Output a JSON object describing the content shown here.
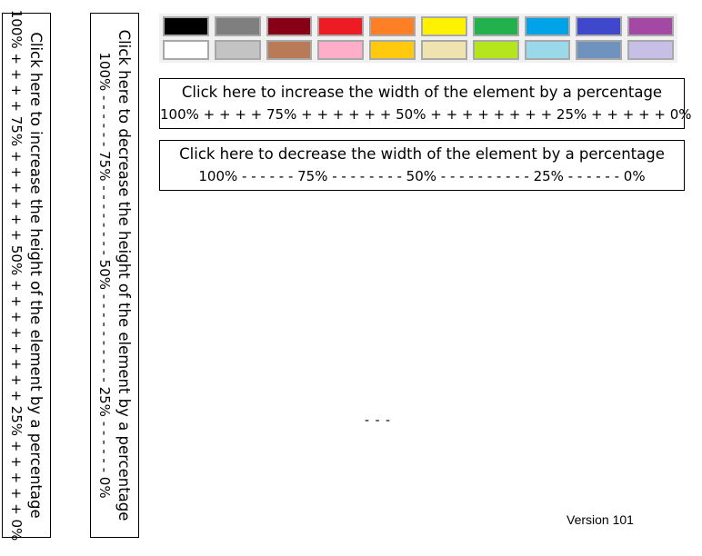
{
  "palette": {
    "colors": [
      "#000000",
      "#7f7f7f",
      "#880015",
      "#ed1c24",
      "#ff7f27",
      "#fff200",
      "#22b14c",
      "#00a2e8",
      "#3f48cc",
      "#a349a4",
      "#ffffff",
      "#c3c3c3",
      "#b97a57",
      "#ffaec9",
      "#ffc90e",
      "#efe4b0",
      "#b5e61d",
      "#99d9ea",
      "#7092be",
      "#c8bfe7"
    ]
  },
  "width_increase": {
    "label": "Click here to increase the width of the element by a percentage",
    "scale": "100%  + + + +  75%   + + + + + +  50% + + + + + + + + 25%  + + + + +  0%"
  },
  "width_decrease": {
    "label": "Click here to decrease the width of the element by a percentage",
    "scale": "100% - - - - - -   75%   - - - - - - - -    50%   - - - - - - - - - -    25%   - - - - - -    0%"
  },
  "height_increase": {
    "label": "Click here to increase the height of the element by a percentage",
    "scale": "100%  + + + +  75%   + + + + + +  50% + + + + + + + + 25%  + + + + +  0%"
  },
  "height_decrease": {
    "label": "Click here to decrease the height of the element by a percentage",
    "scale": "100% - - - - - -   75%   - - - - - - - -    50%   - - - - - - - - - -    25%   - - - - - -    0%"
  },
  "placeholder_dashes": "- - -",
  "version": "Version 101"
}
